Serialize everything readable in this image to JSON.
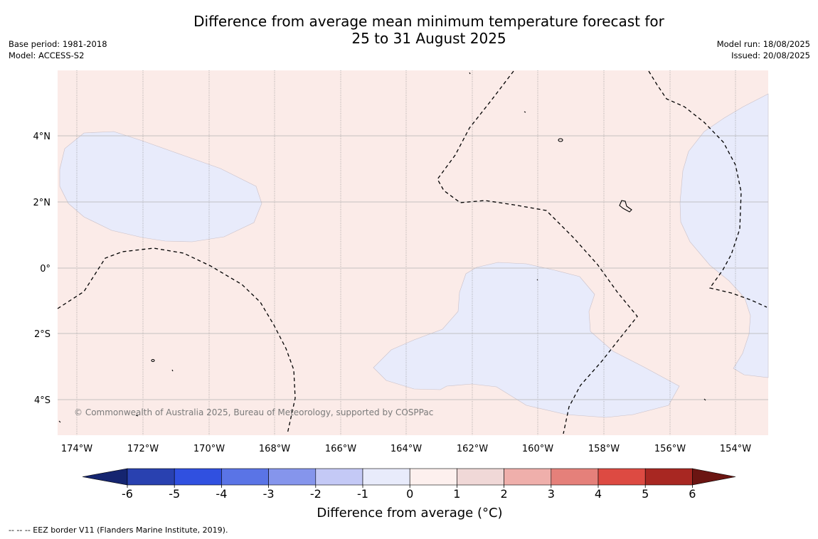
{
  "title": {
    "line1": "Difference from average mean minimum temperature forecast for",
    "line2": "25 to 31 August 2025"
  },
  "meta": {
    "base_period": "Base period: 1981-2018",
    "model": "Model: ACCESS-S2",
    "model_run": "Model run: 18/08/2025",
    "issued": "Issued: 20/08/2025"
  },
  "map": {
    "copyright": "© Commonwealth of Australia 2025, Bureau of Meteorology, supported by COSPPac",
    "lon_ticks": [
      "174°W",
      "172°W",
      "170°W",
      "168°W",
      "166°W",
      "164°W",
      "162°W",
      "160°W",
      "158°W",
      "156°W",
      "154°W"
    ],
    "lat_ticks": [
      "4°N",
      "2°N",
      "0°",
      "2°S",
      "4°S"
    ],
    "colors": {
      "background_warm": "#fbebe8",
      "cool_area": "#e8ebfb",
      "grid": "#8f8f8f"
    }
  },
  "colorbar": {
    "label": "Difference from average (°C)",
    "ticks": [
      "-6",
      "-5",
      "-4",
      "-3",
      "-2",
      "-1",
      "0",
      "1",
      "2",
      "3",
      "4",
      "5",
      "6"
    ],
    "colors": [
      "#152570",
      "#2941b0",
      "#3050e0",
      "#5a74e6",
      "#8595ec",
      "#c4c9f6",
      "#e8ebfb",
      "#fdf0ee",
      "#f0d8d7",
      "#efafab",
      "#e5807a",
      "#dd4a42",
      "#a82722",
      "#6b1512"
    ]
  },
  "footer": {
    "eez_note": "--  --  -- EEZ border V11 (Flanders Marine Institute, 2019)."
  }
}
